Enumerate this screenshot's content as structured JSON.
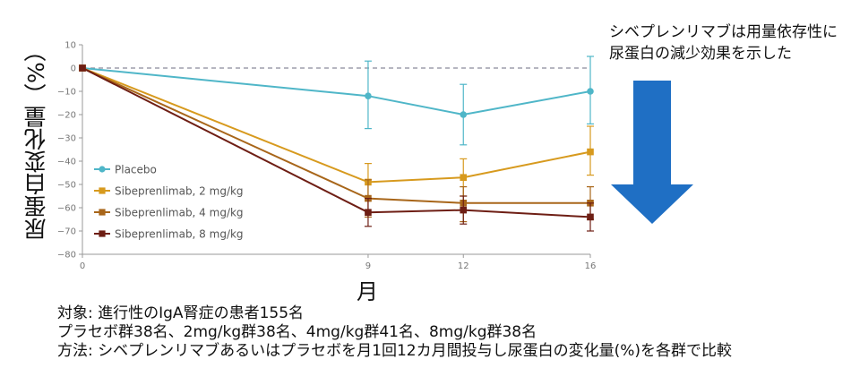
{
  "annotation": {
    "line1": "シベプレンリマブは用量依存性に",
    "line2": "尿蛋白の減少効果を示した"
  },
  "notes": [
    "対象: 進行性のIgA腎症の患者155名",
    "プラセボ群38名、2mg/kg群38名、4mg/kg群41名、8mg/kg群38名",
    "方法: シベプレンリマブあるいはプラセボを月1回12カ月間投与し尿蛋白の変化量(%)を各群で比較"
  ],
  "arrow": {
    "color": "#1f6fc4"
  },
  "chart_data": {
    "type": "line",
    "title": "",
    "xlabel": "月",
    "ylabel": "尿蛋白変化量（%）",
    "x": [
      0,
      9,
      12,
      16
    ],
    "x_ticks": [
      "0",
      "9",
      "12",
      "16"
    ],
    "xlim": [
      0,
      16
    ],
    "ylim": [
      -80,
      10
    ],
    "y_ticks": [
      "10",
      "0",
      "−10",
      "−20",
      "−30",
      "−40",
      "−50",
      "−60",
      "−70",
      "−80"
    ],
    "grid": false,
    "reference_line": {
      "y": 0,
      "style": "dashed"
    },
    "legend_position": "bottom-left",
    "series": [
      {
        "name": "Placebo",
        "color": "#4fb6c8",
        "marker": "circle",
        "values": [
          0,
          -12,
          -20,
          -10
        ],
        "err_low": [
          0,
          -26,
          -33,
          -24
        ],
        "err_high": [
          0,
          3,
          -7,
          5
        ]
      },
      {
        "name": "Sibeprenlimab, 2 mg/kg",
        "color": "#d79a1e",
        "marker": "square",
        "values": [
          0,
          -49,
          -47,
          -36
        ],
        "err_low": [
          0,
          -57,
          -55,
          -46
        ],
        "err_high": [
          0,
          -41,
          -39,
          -25
        ]
      },
      {
        "name": "Sibeprenlimab, 4 mg/kg",
        "color": "#a8661a",
        "marker": "square",
        "values": [
          0,
          -56,
          -58,
          -58
        ],
        "err_low": [
          0,
          -64,
          -66,
          -65
        ],
        "err_high": [
          0,
          -48,
          -51,
          -51
        ]
      },
      {
        "name": "Sibeprenlimab, 8 mg/kg",
        "color": "#6e1e14",
        "marker": "square",
        "values": [
          0,
          -62,
          -61,
          -64
        ],
        "err_low": [
          0,
          -68,
          -67,
          -70
        ],
        "err_high": [
          0,
          -56,
          -55,
          -58
        ]
      }
    ]
  }
}
